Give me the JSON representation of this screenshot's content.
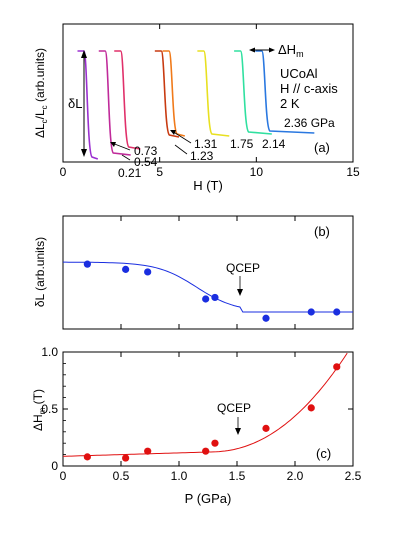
{
  "chart_data": [
    {
      "panel_label": "(a)",
      "type": "line",
      "xlabel": "H (T)",
      "ylabel": "ΔLc/Lc (arb.units)",
      "xlim": [
        0,
        15
      ],
      "x_ticks": [
        "0",
        "5",
        "10",
        "15"
      ],
      "annotations": [
        "UCoAl",
        "H // c-axis",
        "2 K",
        "δL",
        "ΔHm"
      ],
      "series": [
        {
          "name": "0.21",
          "color": "#9b30d0",
          "transition_field_T": 1.2
        },
        {
          "name": "0.54",
          "color": "#c02a9a",
          "transition_field_T": 2.3
        },
        {
          "name": "0.73",
          "color": "#e0306a",
          "transition_field_T": 3.1
        },
        {
          "name": "1.23",
          "color": "#c83a10",
          "transition_field_T": 5.2
        },
        {
          "name": "1.31",
          "color": "#f07a1a",
          "transition_field_T": 5.6
        },
        {
          "name": "1.75",
          "color": "#e8e020",
          "transition_field_T": 7.4
        },
        {
          "name": "2.14",
          "color": "#30e0a0",
          "transition_field_T": 9.3
        },
        {
          "name": "2.36 GPa",
          "color": "#2a78e0",
          "transition_field_T": 10.4
        }
      ]
    },
    {
      "panel_label": "(b)",
      "type": "scatter",
      "xlabel": "",
      "ylabel": "δL (arb.units)",
      "xlim": [
        0,
        2.5
      ],
      "annotation": "QCEP",
      "points_color": "#1a2ee0",
      "x": [
        0.21,
        0.54,
        0.73,
        1.23,
        1.31,
        1.75,
        2.14,
        2.36
      ],
      "y": [
        0.92,
        0.82,
        0.77,
        0.25,
        0.28,
        -0.12,
        0.0,
        0.0
      ]
    },
    {
      "panel_label": "(c)",
      "type": "scatter",
      "xlabel": "P (GPa)",
      "ylabel": "ΔHm (T)",
      "xlim": [
        0,
        2.5
      ],
      "ylim": [
        0,
        1.0
      ],
      "x_ticks": [
        "0",
        "0.5",
        "1.0",
        "1.5",
        "2.0",
        "2.5"
      ],
      "y_ticks": [
        "0",
        "0.5",
        "1.0"
      ],
      "annotation": "QCEP",
      "points_color": "#e01010",
      "x": [
        0.21,
        0.54,
        0.73,
        1.23,
        1.31,
        1.75,
        2.14,
        2.36
      ],
      "y": [
        0.08,
        0.07,
        0.13,
        0.13,
        0.2,
        0.33,
        0.51,
        0.87
      ]
    }
  ]
}
